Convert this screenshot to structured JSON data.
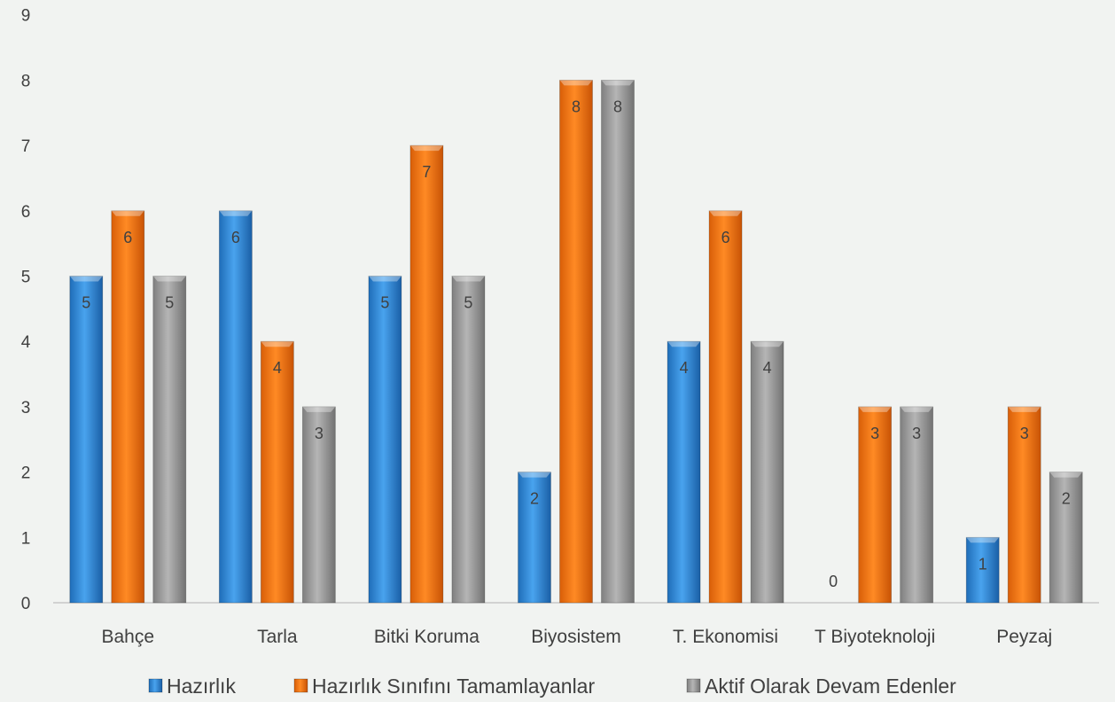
{
  "chart_data": {
    "type": "bar",
    "categories": [
      "Bahçe",
      "Tarla",
      "Bitki Koruma",
      "Biyosistem",
      "T. Ekonomisi",
      "T Biyoteknoloji",
      "Peyzaj"
    ],
    "series": [
      {
        "name": "Hazırlık",
        "color": "#2e86d8",
        "values": [
          5,
          6,
          5,
          2,
          4,
          0,
          1
        ]
      },
      {
        "name": "Hazırlık Sınıfını Tamamlayanlar",
        "color": "#f07010",
        "values": [
          6,
          4,
          7,
          8,
          6,
          3,
          3
        ]
      },
      {
        "name": "Aktif Olarak Devam Edenler",
        "color": "#9a9a9a",
        "values": [
          5,
          3,
          5,
          8,
          4,
          3,
          2
        ]
      }
    ],
    "ylim": [
      0,
      9
    ],
    "yticks": [
      "0",
      "1",
      "2",
      "3",
      "4",
      "5",
      "6",
      "7",
      "8",
      "9"
    ],
    "data_labels": true,
    "grid": false,
    "legend_position": "bottom"
  }
}
